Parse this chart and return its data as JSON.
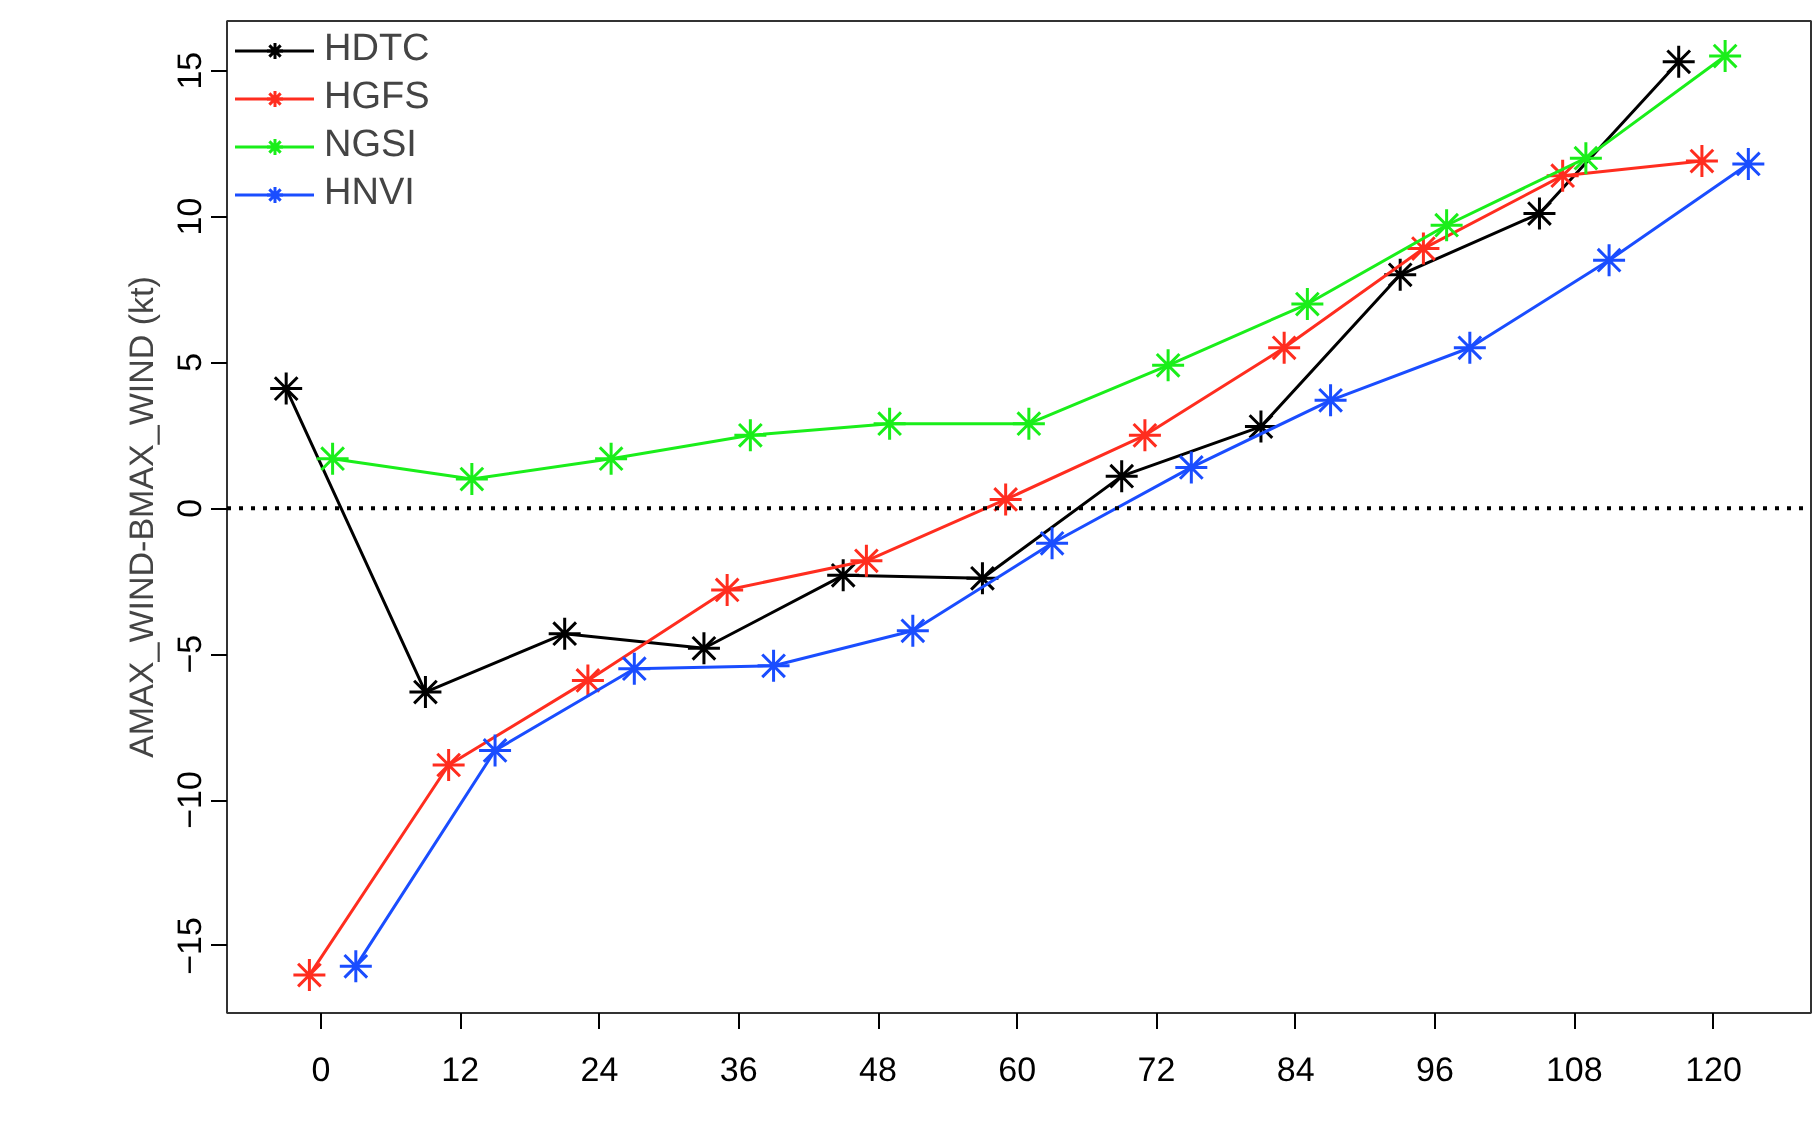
{
  "chart_data": {
    "type": "line",
    "ylabel": "AMAX_WIND-BMAX_WIND (kt)",
    "xlim": [
      -8.1,
      128.4
    ],
    "ylim": [
      -17.3,
      16.7
    ],
    "xticks": [
      0,
      12,
      24,
      36,
      48,
      60,
      72,
      84,
      96,
      108,
      120
    ],
    "yticks": [
      -15,
      -10,
      -5,
      0,
      5,
      10,
      15
    ],
    "series": [
      {
        "name": "HDTC",
        "color": "#000000",
        "x": [
          -3,
          9,
          21,
          33,
          45,
          57,
          69,
          81,
          93,
          105,
          117
        ],
        "values": [
          4.1,
          -6.3,
          -4.3,
          -4.8,
          -2.3,
          -2.4,
          1.1,
          2.8,
          8.0,
          10.1,
          15.3
        ]
      },
      {
        "name": "HGFS",
        "color": "#ff2d1f",
        "x": [
          -1,
          11,
          23,
          35,
          47,
          59,
          71,
          83,
          95,
          107,
          119
        ],
        "values": [
          -16.0,
          -8.8,
          -5.9,
          -2.8,
          -1.8,
          0.3,
          2.5,
          5.5,
          8.9,
          11.4,
          11.9
        ]
      },
      {
        "name": "NGSI",
        "color": "#1aee1a",
        "x": [
          1,
          13,
          25,
          37,
          49,
          61,
          73,
          85,
          97,
          109,
          121
        ],
        "values": [
          1.7,
          1.0,
          1.7,
          2.5,
          2.9,
          2.9,
          4.9,
          7.0,
          9.7,
          12.0,
          15.5
        ]
      },
      {
        "name": "HNVI",
        "color": "#1a4dff",
        "x": [
          3,
          15,
          27,
          39,
          51,
          63,
          75,
          87,
          99,
          111,
          123
        ],
        "values": [
          -15.7,
          -8.3,
          -5.5,
          -5.4,
          -4.2,
          -1.2,
          1.4,
          3.7,
          5.5,
          8.5,
          11.8
        ]
      }
    ],
    "ref_lines": [
      {
        "axis": "y",
        "value": 0,
        "color": "#000000",
        "line_style": "dotted"
      }
    ],
    "marker": "cross",
    "line_style": "solid",
    "grid": false,
    "legend": "top left"
  }
}
